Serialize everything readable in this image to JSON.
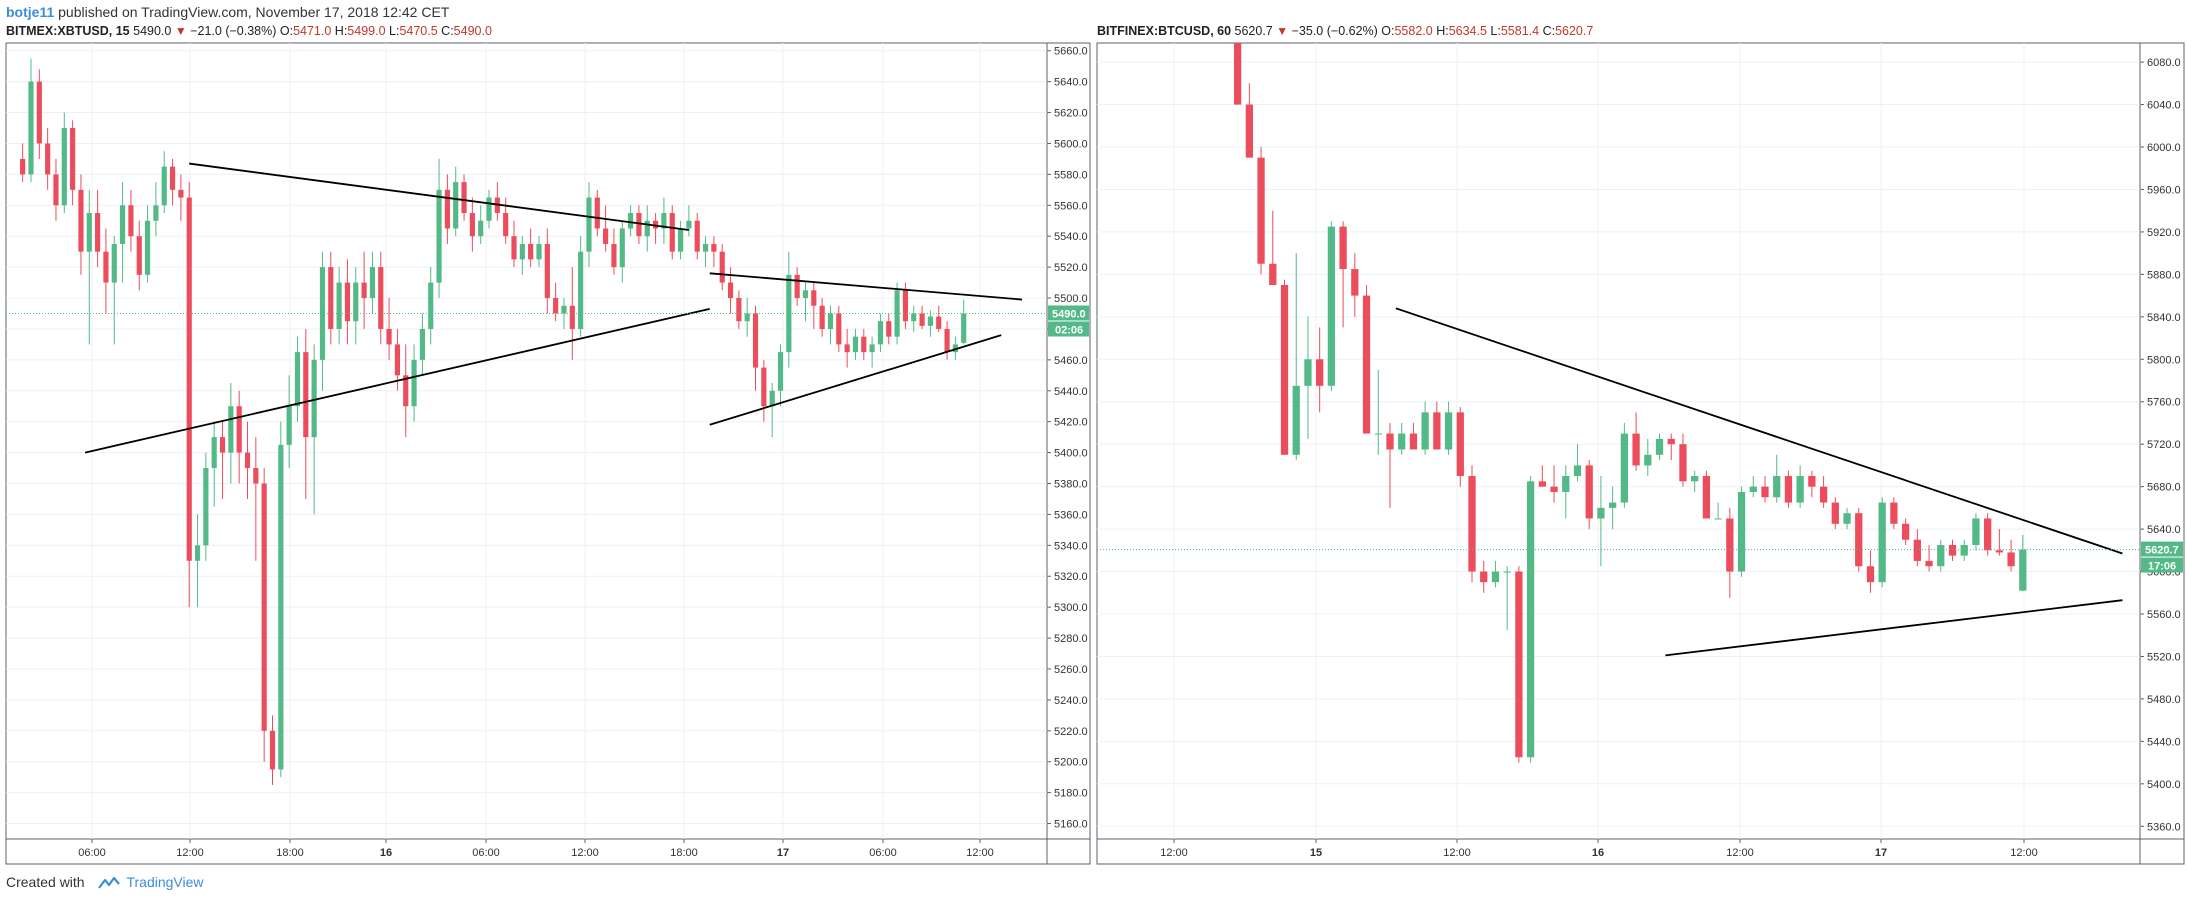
{
  "header": {
    "username": "botje11",
    "rest": " published on TradingView.com, November 17, 2018 12:42 CET"
  },
  "footer": {
    "created": "Created with",
    "brand": "TradingView"
  },
  "colors": {
    "up": "#53b987",
    "down": "#eb4d5c",
    "grid": "#eef0f3",
    "trend": "#000000"
  },
  "chart_data": [
    {
      "type": "candlestick",
      "symbol": "BITMEX:XBTUSD, 15",
      "last": "5490.0",
      "change": "−21.0 (−0.38%)",
      "open": "5471.0",
      "high": "5499.0",
      "low": "5470.5",
      "close": "5490.0",
      "price_badge": "5490.0",
      "countdown_badge": "02:06",
      "ylim": [
        5150,
        5665
      ],
      "y_ticks": [
        5160,
        5180,
        5200,
        5220,
        5240,
        5260,
        5280,
        5300,
        5320,
        5340,
        5360,
        5380,
        5400,
        5420,
        5440,
        5460,
        5480,
        5500,
        5520,
        5540,
        5560,
        5580,
        5600,
        5620,
        5640,
        5660
      ],
      "x_ticks": [
        "06:00",
        "12:00",
        "18:00",
        "16",
        "06:00",
        "12:00",
        "18:00",
        "17",
        "06:00",
        "12:00"
      ],
      "x_tick_bold": [
        false,
        false,
        false,
        true,
        false,
        false,
        false,
        true,
        false,
        false
      ],
      "candles_ohlc": [
        [
          5590,
          5600,
          5575,
          5580
        ],
        [
          5580,
          5655,
          5575,
          5640
        ],
        [
          5640,
          5648,
          5590,
          5600
        ],
        [
          5600,
          5610,
          5570,
          5580
        ],
        [
          5580,
          5590,
          5550,
          5560
        ],
        [
          5560,
          5620,
          5555,
          5610
        ],
        [
          5610,
          5615,
          5560,
          5570
        ],
        [
          5570,
          5580,
          5515,
          5530
        ],
        [
          5530,
          5570,
          5470,
          5555
        ],
        [
          5555,
          5570,
          5520,
          5530
        ],
        [
          5530,
          5545,
          5490,
          5510
        ],
        [
          5510,
          5540,
          5470,
          5535
        ],
        [
          5535,
          5575,
          5510,
          5560
        ],
        [
          5560,
          5570,
          5530,
          5540
        ],
        [
          5540,
          5550,
          5505,
          5515
        ],
        [
          5515,
          5560,
          5510,
          5550
        ],
        [
          5550,
          5575,
          5540,
          5560
        ],
        [
          5560,
          5595,
          5555,
          5585
        ],
        [
          5585,
          5590,
          5560,
          5570
        ],
        [
          5570,
          5580,
          5550,
          5565
        ],
        [
          5565,
          5575,
          5300,
          5330
        ],
        [
          5330,
          5360,
          5300,
          5340
        ],
        [
          5340,
          5400,
          5330,
          5390
        ],
        [
          5390,
          5420,
          5365,
          5410
        ],
        [
          5410,
          5420,
          5370,
          5400
        ],
        [
          5400,
          5445,
          5380,
          5430
        ],
        [
          5430,
          5440,
          5380,
          5400
        ],
        [
          5400,
          5420,
          5370,
          5390
        ],
        [
          5390,
          5410,
          5330,
          5380
        ],
        [
          5380,
          5390,
          5200,
          5220
        ],
        [
          5220,
          5230,
          5185,
          5195
        ],
        [
          5195,
          5420,
          5190,
          5405
        ],
        [
          5405,
          5450,
          5390,
          5430
        ],
        [
          5430,
          5475,
          5420,
          5465
        ],
        [
          5465,
          5480,
          5370,
          5410
        ],
        [
          5410,
          5470,
          5360,
          5460
        ],
        [
          5460,
          5530,
          5440,
          5520
        ],
        [
          5520,
          5530,
          5470,
          5480
        ],
        [
          5480,
          5520,
          5470,
          5510
        ],
        [
          5510,
          5525,
          5470,
          5485
        ],
        [
          5485,
          5520,
          5470,
          5510
        ],
        [
          5510,
          5530,
          5480,
          5500
        ],
        [
          5500,
          5530,
          5490,
          5520
        ],
        [
          5520,
          5530,
          5470,
          5480
        ],
        [
          5480,
          5500,
          5460,
          5470
        ],
        [
          5470,
          5480,
          5440,
          5450
        ],
        [
          5450,
          5470,
          5410,
          5430
        ],
        [
          5430,
          5470,
          5420,
          5460
        ],
        [
          5460,
          5490,
          5450,
          5480
        ],
        [
          5480,
          5520,
          5470,
          5510
        ],
        [
          5510,
          5590,
          5500,
          5570
        ],
        [
          5570,
          5580,
          5535,
          5545
        ],
        [
          5545,
          5585,
          5540,
          5575
        ],
        [
          5575,
          5580,
          5550,
          5555
        ],
        [
          5555,
          5565,
          5530,
          5540
        ],
        [
          5540,
          5560,
          5535,
          5550
        ],
        [
          5550,
          5570,
          5545,
          5565
        ],
        [
          5565,
          5575,
          5550,
          5555
        ],
        [
          5555,
          5565,
          5535,
          5540
        ],
        [
          5540,
          5550,
          5520,
          5525
        ],
        [
          5525,
          5540,
          5515,
          5535
        ],
        [
          5535,
          5545,
          5520,
          5525
        ],
        [
          5525,
          5540,
          5520,
          5535
        ],
        [
          5535,
          5545,
          5490,
          5500
        ],
        [
          5500,
          5510,
          5485,
          5490
        ],
        [
          5490,
          5500,
          5480,
          5495
        ],
        [
          5495,
          5520,
          5460,
          5480
        ],
        [
          5480,
          5540,
          5475,
          5530
        ],
        [
          5530,
          5575,
          5520,
          5565
        ],
        [
          5565,
          5570,
          5540,
          5545
        ],
        [
          5545,
          5560,
          5530,
          5535
        ],
        [
          5535,
          5545,
          5515,
          5520
        ],
        [
          5520,
          5550,
          5510,
          5545
        ],
        [
          5545,
          5560,
          5540,
          5555
        ],
        [
          5555,
          5560,
          5535,
          5540
        ],
        [
          5540,
          5560,
          5530,
          5550
        ],
        [
          5550,
          5555,
          5535,
          5545
        ],
        [
          5545,
          5565,
          5535,
          5555
        ],
        [
          5555,
          5560,
          5525,
          5530
        ],
        [
          5530,
          5550,
          5525,
          5545
        ],
        [
          5545,
          5560,
          5540,
          5550
        ],
        [
          5550,
          5555,
          5525,
          5530
        ],
        [
          5530,
          5540,
          5520,
          5535
        ],
        [
          5535,
          5540,
          5520,
          5530
        ],
        [
          5530,
          5535,
          5505,
          5510
        ],
        [
          5510,
          5520,
          5490,
          5500
        ],
        [
          5500,
          5505,
          5480,
          5485
        ],
        [
          5485,
          5500,
          5475,
          5490
        ],
        [
          5490,
          5495,
          5440,
          5455
        ],
        [
          5455,
          5460,
          5420,
          5430
        ],
        [
          5430,
          5445,
          5410,
          5440
        ],
        [
          5440,
          5470,
          5430,
          5465
        ],
        [
          5465,
          5530,
          5455,
          5515
        ],
        [
          5515,
          5520,
          5495,
          5500
        ],
        [
          5500,
          5510,
          5485,
          5505
        ],
        [
          5505,
          5510,
          5480,
          5495
        ],
        [
          5495,
          5500,
          5475,
          5480
        ],
        [
          5480,
          5495,
          5470,
          5490
        ],
        [
          5490,
          5495,
          5465,
          5470
        ],
        [
          5470,
          5480,
          5455,
          5465
        ],
        [
          5465,
          5480,
          5460,
          5475
        ],
        [
          5475,
          5480,
          5460,
          5465
        ],
        [
          5465,
          5475,
          5455,
          5470
        ],
        [
          5470,
          5490,
          5465,
          5485
        ],
        [
          5485,
          5490,
          5470,
          5475
        ],
        [
          5475,
          5510,
          5470,
          5505
        ],
        [
          5505,
          5510,
          5480,
          5485
        ],
        [
          5485,
          5495,
          5478,
          5490
        ],
        [
          5490,
          5495,
          5480,
          5482
        ],
        [
          5482,
          5492,
          5475,
          5488
        ],
        [
          5488,
          5495,
          5478,
          5480
        ],
        [
          5480,
          5485,
          5460,
          5465
        ],
        [
          5465,
          5475,
          5460,
          5470
        ],
        [
          5471,
          5499,
          5470,
          5490
        ]
      ],
      "trendlines": [
        {
          "from": [
            20.0,
            5587
          ],
          "to": [
            80.0,
            5544
          ]
        },
        {
          "from": [
            7.5,
            5400
          ],
          "to": [
            82.5,
            5493
          ]
        },
        {
          "from": [
            82.5,
            5516
          ],
          "to": [
            120.0,
            5499
          ]
        },
        {
          "from": [
            82.5,
            5418
          ],
          "to": [
            117.5,
            5476
          ]
        }
      ],
      "x_range": [
        -2,
        123
      ]
    },
    {
      "type": "candlestick",
      "symbol": "BITFINEX:BTCUSD, 60",
      "last": "5620.7",
      "change": "−35.0 (−0.62%)",
      "open": "5582.0",
      "high": "5634.5",
      "low": "5581.4",
      "close": "5620.7",
      "price_badge": "5620.7",
      "countdown_badge": "17:06",
      "ylim": [
        5348,
        6098
      ],
      "y_ticks": [
        5360,
        5400,
        5440,
        5480,
        5520,
        5560,
        5600,
        5640,
        5680,
        5720,
        5760,
        5800,
        5840,
        5880,
        5920,
        5960,
        6000,
        6040,
        6080
      ],
      "x_ticks": [
        "12:00",
        "15",
        "12:00",
        "16",
        "12:00",
        "17",
        "12:00"
      ],
      "x_tick_bold": [
        false,
        true,
        false,
        true,
        false,
        true,
        false
      ],
      "candles_ohlc": [
        [
          6110,
          6125,
          6040,
          6040
        ],
        [
          6040,
          6060,
          5990,
          5990
        ],
        [
          5990,
          6000,
          5880,
          5890
        ],
        [
          5890,
          5940,
          5870,
          5870
        ],
        [
          5870,
          5875,
          5710,
          5710
        ],
        [
          5710,
          5900,
          5705,
          5775
        ],
        [
          5775,
          5840,
          5725,
          5800
        ],
        [
          5800,
          5830,
          5750,
          5775
        ],
        [
          5775,
          5930,
          5770,
          5925
        ],
        [
          5925,
          5930,
          5830,
          5885
        ],
        [
          5885,
          5900,
          5840,
          5860
        ],
        [
          5860,
          5870,
          5730,
          5730
        ],
        [
          5730,
          5790,
          5710,
          5730
        ],
        [
          5730,
          5740,
          5660,
          5715
        ],
        [
          5715,
          5740,
          5710,
          5730
        ],
        [
          5730,
          5740,
          5715,
          5715
        ],
        [
          5715,
          5760,
          5710,
          5750
        ],
        [
          5750,
          5760,
          5715,
          5715
        ],
        [
          5715,
          5760,
          5710,
          5750
        ],
        [
          5750,
          5755,
          5680,
          5690
        ],
        [
          5690,
          5700,
          5590,
          5600
        ],
        [
          5600,
          5610,
          5580,
          5590
        ],
        [
          5590,
          5610,
          5585,
          5600
        ],
        [
          5600,
          5605,
          5545,
          5600
        ],
        [
          5600,
          5605,
          5420,
          5425
        ],
        [
          5425,
          5690,
          5420,
          5685
        ],
        [
          5685,
          5700,
          5680,
          5680
        ],
        [
          5680,
          5700,
          5665,
          5675
        ],
        [
          5675,
          5700,
          5650,
          5690
        ],
        [
          5690,
          5720,
          5685,
          5700
        ],
        [
          5700,
          5705,
          5640,
          5650
        ],
        [
          5650,
          5690,
          5605,
          5660
        ],
        [
          5660,
          5680,
          5640,
          5665
        ],
        [
          5665,
          5740,
          5660,
          5730
        ],
        [
          5730,
          5750,
          5695,
          5700
        ],
        [
          5700,
          5725,
          5690,
          5710
        ],
        [
          5710,
          5730,
          5705,
          5725
        ],
        [
          5725,
          5730,
          5705,
          5720
        ],
        [
          5720,
          5730,
          5680,
          5685
        ],
        [
          5685,
          5695,
          5675,
          5690
        ],
        [
          5690,
          5695,
          5650,
          5650
        ],
        [
          5650,
          5665,
          5650,
          5650
        ],
        [
          5650,
          5660,
          5575,
          5600
        ],
        [
          5600,
          5680,
          5595,
          5675
        ],
        [
          5675,
          5690,
          5670,
          5680
        ],
        [
          5680,
          5690,
          5665,
          5670
        ],
        [
          5670,
          5710,
          5665,
          5690
        ],
        [
          5690,
          5695,
          5660,
          5665
        ],
        [
          5665,
          5700,
          5660,
          5690
        ],
        [
          5690,
          5695,
          5670,
          5680
        ],
        [
          5680,
          5690,
          5660,
          5665
        ],
        [
          5665,
          5670,
          5640,
          5645
        ],
        [
          5645,
          5660,
          5640,
          5655
        ],
        [
          5655,
          5660,
          5600,
          5605
        ],
        [
          5605,
          5620,
          5580,
          5590
        ],
        [
          5590,
          5670,
          5585,
          5665
        ],
        [
          5665,
          5670,
          5640,
          5645
        ],
        [
          5645,
          5650,
          5625,
          5630
        ],
        [
          5630,
          5640,
          5605,
          5610
        ],
        [
          5610,
          5625,
          5600,
          5605
        ],
        [
          5605,
          5630,
          5600,
          5625
        ],
        [
          5625,
          5630,
          5610,
          5615
        ],
        [
          5615,
          5630,
          5610,
          5625
        ],
        [
          5625,
          5655,
          5620,
          5650
        ],
        [
          5650,
          5655,
          5615,
          5620
        ],
        [
          5620,
          5640,
          5615,
          5618
        ],
        [
          5618,
          5630,
          5600,
          5605
        ],
        [
          5582,
          5634.5,
          5581.4,
          5620.7
        ]
      ],
      "trendlines": [
        {
          "from": [
            13.5,
            5848
          ],
          "to": [
            75.5,
            5617
          ]
        },
        {
          "from": [
            36.5,
            5521
          ],
          "to": [
            75.5,
            5573
          ]
        }
      ],
      "x_range": [
        -12,
        77
      ]
    }
  ]
}
